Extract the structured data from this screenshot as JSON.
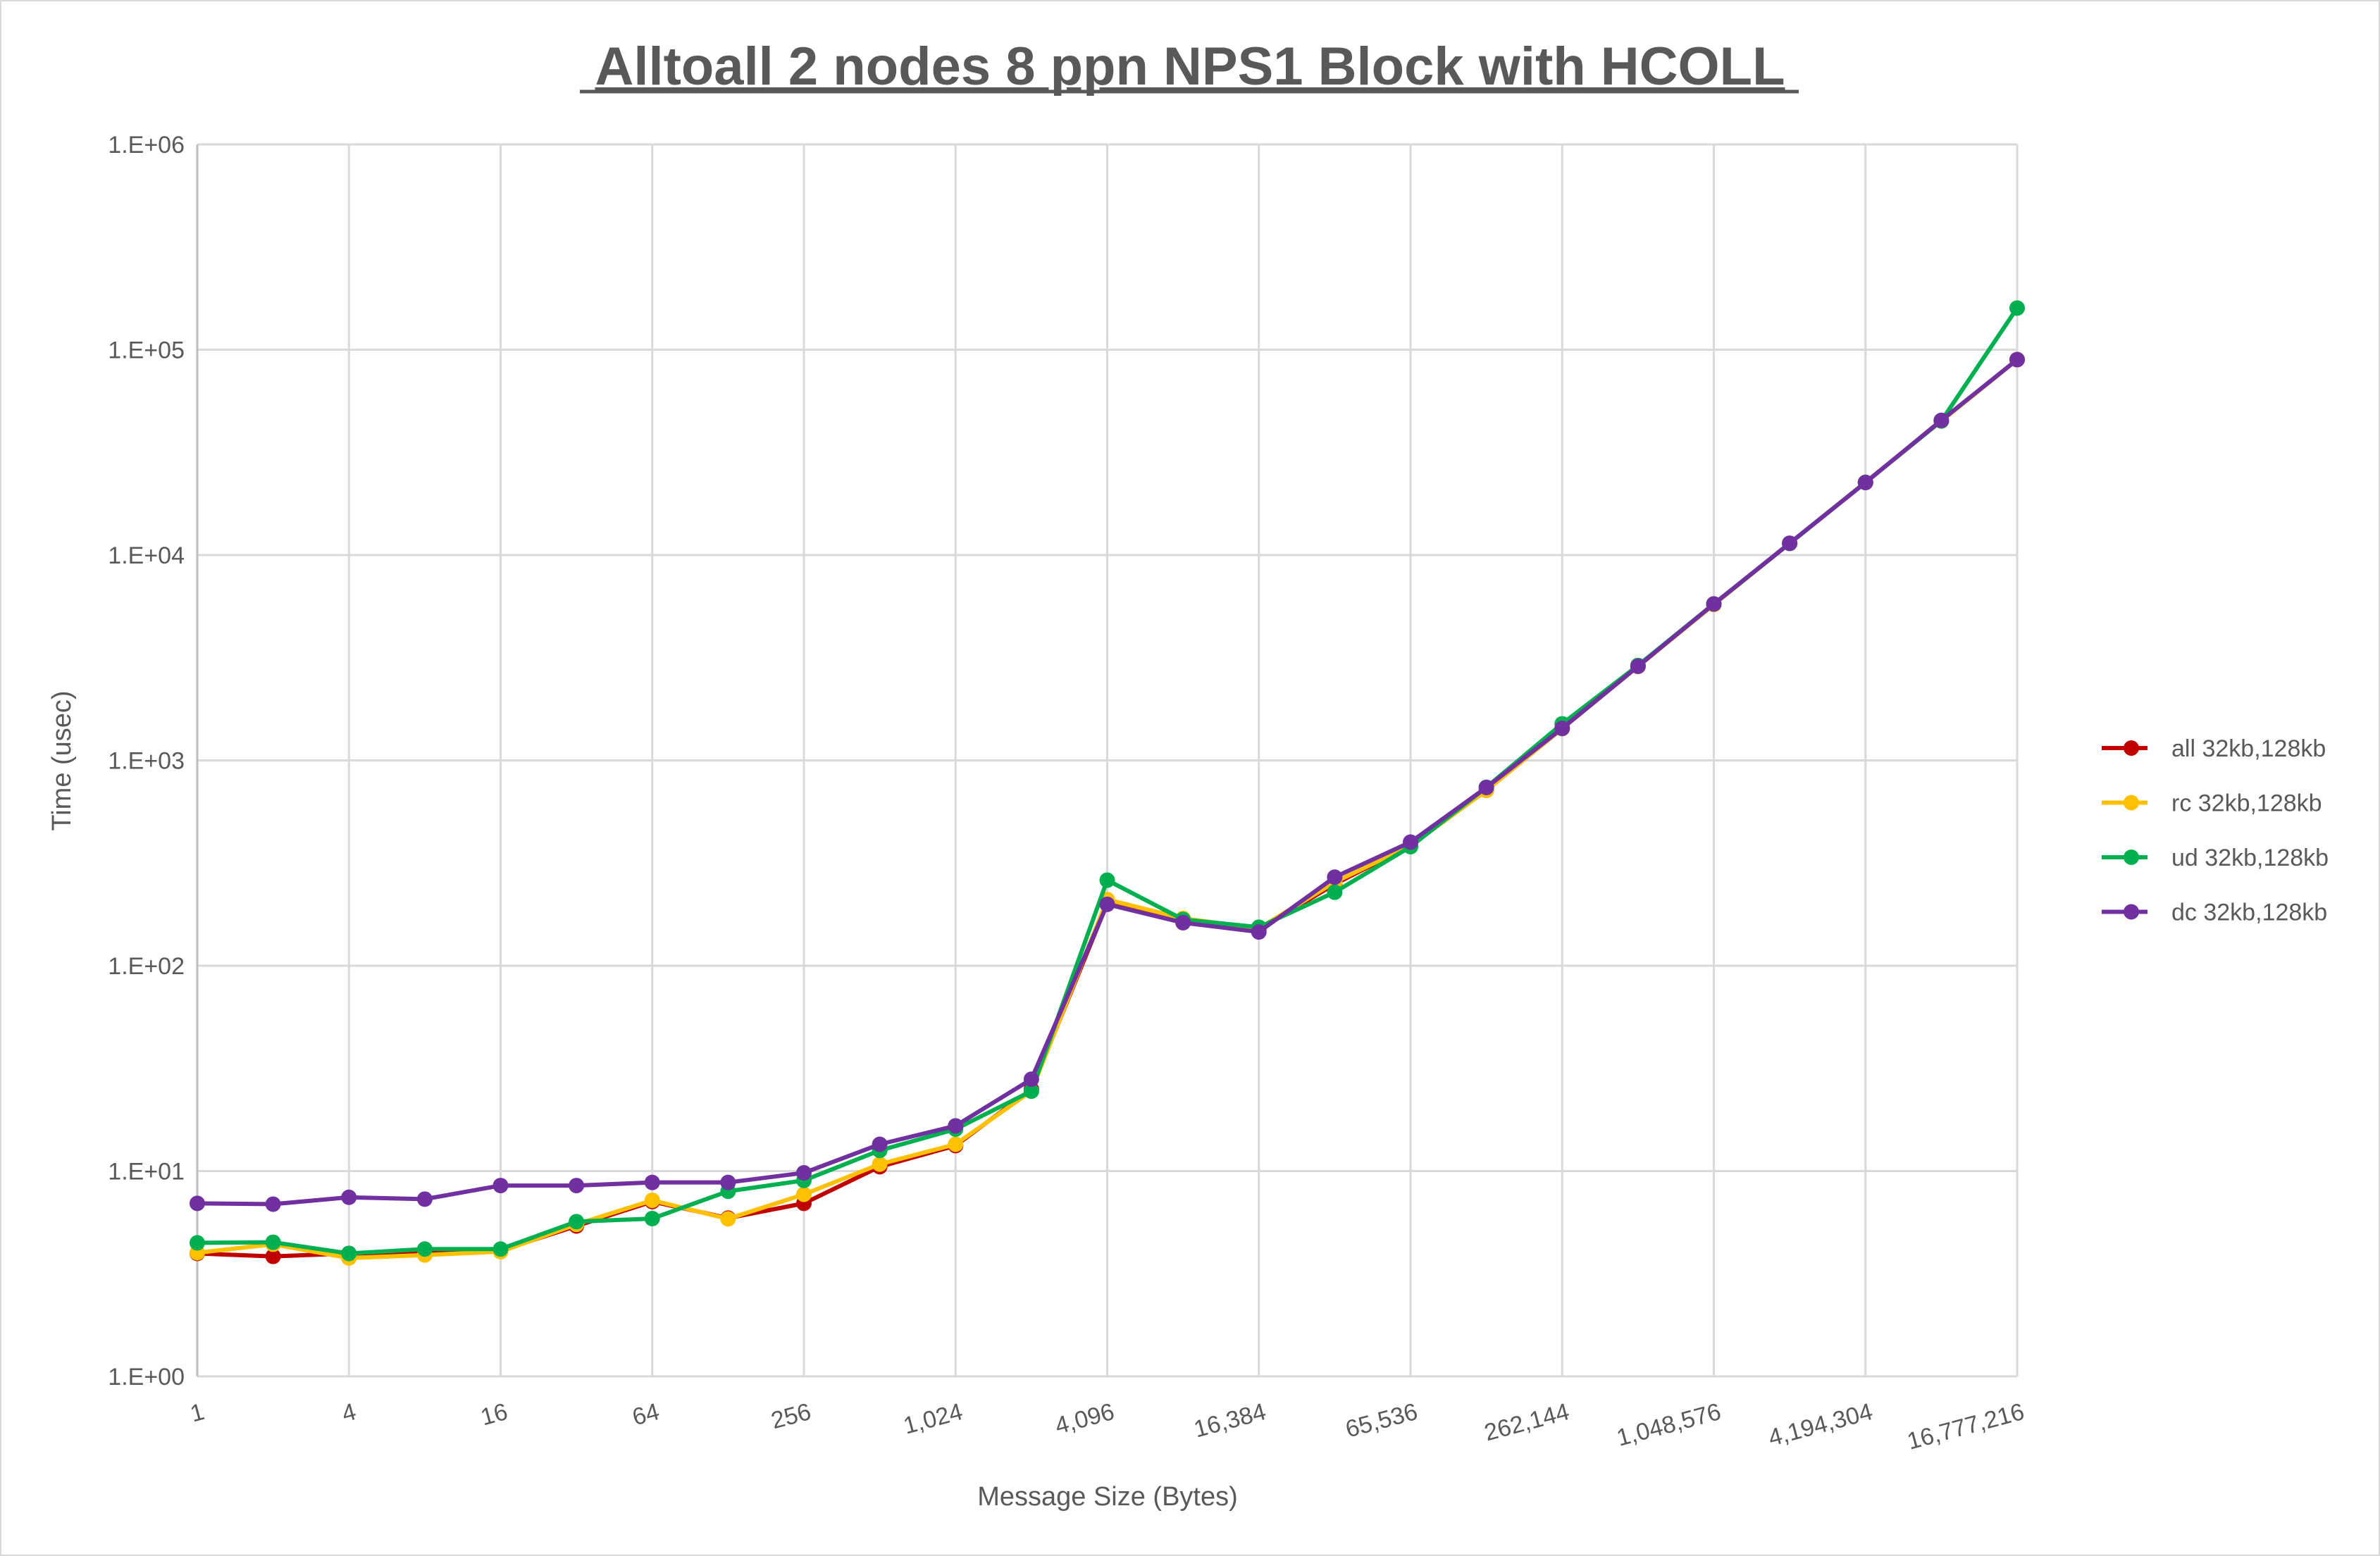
{
  "chart_data": {
    "type": "line",
    "title": "Alltoall 2 nodes 8 ppn NPS1 Block with HCOLL",
    "xlabel": "Message Size (Bytes)",
    "ylabel": "Time (usec)",
    "x_scale": "log2",
    "y_scale": "log10",
    "ylim": [
      1,
      1000000
    ],
    "grid": true,
    "legend_position": "right",
    "x": [
      1,
      2,
      4,
      8,
      16,
      32,
      64,
      128,
      256,
      512,
      1024,
      2048,
      4096,
      8192,
      16384,
      32768,
      65536,
      131072,
      262144,
      524288,
      1048576,
      2097152,
      4194304,
      8388608,
      16777216
    ],
    "x_tick_labels": [
      "1",
      "4",
      "16",
      "64",
      "256",
      "1,024",
      "4,096",
      "16,384",
      "65,536",
      "262,144",
      "1,048,576",
      "4,194,304",
      "16,777,216"
    ],
    "y_tick_labels": [
      "1.E+00",
      "1.E+01",
      "1.E+02",
      "1.E+03",
      "1.E+04",
      "1.E+05",
      "1.E+06"
    ],
    "series": [
      {
        "name": "all 32kb,128kb",
        "color": "#C00000",
        "values": [
          3.97,
          3.84,
          3.97,
          4.0,
          4.1,
          5.4,
          7.1,
          5.9,
          6.96,
          10.5,
          13.3,
          25,
          201,
          168,
          150,
          250,
          385,
          715,
          1430,
          2870,
          5750,
          11400,
          22600,
          45000,
          89500
        ]
      },
      {
        "name": "rc 32kb,128kb",
        "color": "#FFC000",
        "values": [
          4.0,
          4.4,
          3.77,
          3.9,
          4.05,
          5.5,
          7.2,
          5.85,
          7.7,
          10.8,
          13.5,
          24.5,
          210,
          170,
          152,
          255,
          385,
          715,
          1430,
          2870,
          5750,
          11400,
          22600,
          45000,
          89500
        ]
      },
      {
        "name": "ud 32kb,128kb",
        "color": "#00B050",
        "values": [
          4.47,
          4.5,
          3.97,
          4.17,
          4.17,
          5.67,
          5.87,
          7.97,
          9.0,
          12.6,
          16,
          24.5,
          261,
          168,
          154,
          228,
          380,
          740,
          1507,
          2900,
          5780,
          11400,
          22600,
          45000,
          159600
        ]
      },
      {
        "name": "dc 32kb,128kb",
        "color": "#7030A0",
        "values": [
          6.96,
          6.9,
          7.45,
          7.3,
          8.5,
          8.5,
          8.8,
          8.8,
          9.8,
          13.5,
          16.6,
          28,
          199,
          162,
          146,
          270,
          400,
          738,
          1432,
          2874,
          5780,
          11420,
          22550,
          45300,
          89500
        ]
      }
    ]
  }
}
